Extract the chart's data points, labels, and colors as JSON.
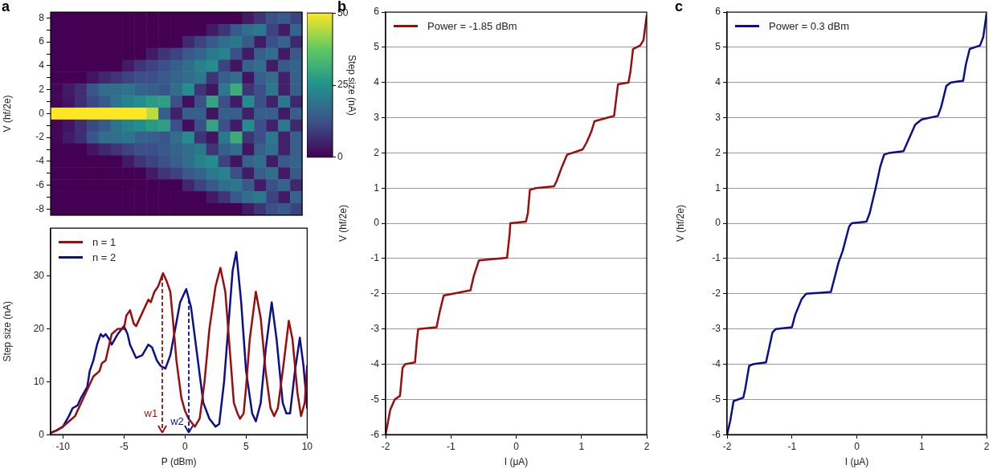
{
  "chart_data": [
    {
      "type": "heatmap",
      "title": "a",
      "ylabel": "V (hf/2e)",
      "categories": [
        null,
        null,
        null,
        null,
        null,
        null,
        null,
        null,
        null,
        null,
        null,
        null,
        null,
        null,
        null,
        null,
        null,
        null,
        null,
        null,
        null
      ],
      "y_categories": [
        "8",
        null,
        "6",
        null,
        "4",
        null,
        "2",
        null,
        "0",
        null,
        "-2",
        null,
        "-4",
        null,
        "-6",
        null,
        "-8"
      ],
      "cells": [
        [
          0,
          0,
          0,
          0,
          0,
          0,
          0,
          0,
          0,
          0,
          0,
          0,
          0,
          0,
          0,
          0,
          4,
          8,
          12,
          14,
          10
        ],
        [
          0,
          0,
          0,
          0,
          0,
          0,
          0,
          0,
          0,
          0,
          0,
          0,
          0,
          4,
          8,
          14,
          18,
          20,
          10,
          4,
          16
        ],
        [
          0,
          0,
          0,
          0,
          0,
          0,
          0,
          0,
          0,
          0,
          0,
          6,
          10,
          14,
          18,
          20,
          14,
          4,
          12,
          16,
          6
        ],
        [
          0,
          0,
          0,
          0,
          0,
          0,
          0,
          0,
          4,
          8,
          10,
          14,
          16,
          20,
          22,
          12,
          4,
          15,
          18,
          4,
          14
        ],
        [
          0,
          0,
          0,
          0,
          0,
          0,
          4,
          8,
          10,
          12,
          15,
          18,
          22,
          24,
          10,
          3,
          16,
          18,
          4,
          14,
          16
        ],
        [
          0,
          0,
          0,
          3,
          6,
          8,
          10,
          12,
          12,
          14,
          16,
          18,
          20,
          8,
          15,
          18,
          3,
          15,
          18,
          5,
          15
        ],
        [
          1,
          4,
          7,
          13,
          18,
          18,
          19,
          16,
          15,
          13,
          18,
          24,
          8,
          3,
          20,
          31,
          8,
          12,
          20,
          5,
          15
        ],
        [
          1,
          3,
          7,
          11,
          14,
          19,
          22,
          24,
          27,
          28,
          12,
          2,
          12,
          29,
          12,
          4,
          24,
          12,
          5,
          20,
          6
        ],
        [
          50,
          50,
          50,
          50,
          50,
          50,
          50,
          50,
          45,
          15,
          5,
          15,
          15,
          3,
          15,
          15,
          5,
          15,
          15,
          4,
          15
        ],
        [
          1,
          3,
          7,
          11,
          14,
          19,
          22,
          24,
          27,
          28,
          12,
          2,
          12,
          29,
          12,
          4,
          24,
          12,
          5,
          20,
          6
        ],
        [
          1,
          4,
          7,
          13,
          18,
          18,
          19,
          16,
          15,
          13,
          18,
          24,
          8,
          3,
          20,
          31,
          8,
          12,
          20,
          5,
          15
        ],
        [
          0,
          0,
          0,
          3,
          6,
          8,
          10,
          12,
          12,
          14,
          16,
          18,
          20,
          8,
          15,
          18,
          3,
          15,
          18,
          5,
          15
        ],
        [
          0,
          0,
          0,
          0,
          0,
          0,
          4,
          8,
          10,
          12,
          15,
          18,
          22,
          24,
          10,
          3,
          16,
          18,
          4,
          14,
          16
        ],
        [
          0,
          0,
          0,
          0,
          0,
          0,
          0,
          0,
          4,
          8,
          10,
          14,
          16,
          20,
          22,
          12,
          4,
          15,
          18,
          4,
          14
        ],
        [
          0,
          0,
          0,
          0,
          0,
          0,
          0,
          0,
          0,
          0,
          0,
          6,
          10,
          14,
          18,
          20,
          14,
          4,
          12,
          16,
          6
        ],
        [
          0,
          0,
          0,
          0,
          0,
          0,
          0,
          0,
          0,
          0,
          0,
          0,
          0,
          4,
          8,
          14,
          18,
          20,
          10,
          4,
          16
        ],
        [
          0,
          0,
          0,
          0,
          0,
          0,
          0,
          0,
          0,
          0,
          0,
          0,
          0,
          0,
          0,
          0,
          4,
          8,
          12,
          14,
          10
        ]
      ],
      "clim": [
        0,
        50
      ],
      "cticks": [
        0,
        25,
        50
      ],
      "clabel": "Step size (nA)",
      "tick_labels": "y"
    },
    {
      "type": "line",
      "xlabel": "P (dBm)",
      "ylabel": "Step size (nA)",
      "xlim": [
        -11,
        10
      ],
      "xticks": [
        -10,
        -5,
        0,
        5,
        10
      ],
      "ylim": [
        0,
        39
      ],
      "yticks": [
        0,
        10,
        20,
        30
      ],
      "legend": "top left",
      "series": [
        {
          "name": "n = 1",
          "color": "#9b0d0d",
          "x": [
            -11,
            -10.5,
            -10,
            -9.5,
            -9,
            -8.5,
            -8,
            -7.5,
            -7,
            -6.8,
            -6.5,
            -6.2,
            -6,
            -5.5,
            -5,
            -4.8,
            -4.5,
            -4.2,
            -4,
            -3.5,
            -3,
            -2.8,
            -2.5,
            -2.2,
            -1.8,
            -1.5,
            -1.2,
            -1,
            -0.7,
            -0.3,
            0,
            0.3,
            0.8,
            1.2,
            1.6,
            2,
            2.5,
            2.9,
            3.3,
            3.7,
            4,
            4.3,
            4.5,
            4.8,
            5,
            5.3,
            5.8,
            6.2,
            6.6,
            7,
            7.3,
            7.6,
            8,
            8.5,
            8.8,
            9.2,
            9.5,
            9.8,
            10
          ],
          "values": [
            0.3,
            0.8,
            1.5,
            2.5,
            3.5,
            6,
            8.5,
            11,
            12,
            13.5,
            14,
            17,
            19,
            20,
            20,
            22.5,
            23.5,
            21,
            20.5,
            23,
            25.5,
            25,
            27,
            28,
            30.5,
            29,
            27,
            22,
            14,
            7,
            4.5,
            3,
            1.5,
            3,
            10,
            20,
            28,
            31.5,
            27,
            15,
            6,
            4,
            3,
            4,
            9,
            18,
            27,
            22,
            12,
            5,
            3.5,
            5,
            12,
            21.5,
            18,
            8,
            3.5,
            6,
            13
          ]
        },
        {
          "name": "n = 2",
          "color": "#0b0f8f",
          "x": [
            -11,
            -10.5,
            -10,
            -9.5,
            -9.2,
            -8.8,
            -8.5,
            -8,
            -7.8,
            -7.5,
            -7.2,
            -6.9,
            -6.7,
            -6.5,
            -6.2,
            -6,
            -5.5,
            -5,
            -4.7,
            -4.5,
            -4,
            -3.5,
            -3,
            -2.7,
            -2.3,
            -2,
            -1.6,
            -1.2,
            -0.8,
            -0.4,
            0.1,
            0.5,
            1,
            1.5,
            2,
            2.5,
            2.8,
            3.2,
            3.6,
            3.9,
            4.2,
            4.6,
            5,
            5.5,
            5.8,
            6.2,
            6.6,
            7.1,
            7.5,
            8,
            8.3,
            8.6,
            9,
            9.4,
            9.7,
            10
          ],
          "values": [
            0.3,
            0.8,
            1.5,
            3.5,
            5,
            5.5,
            7,
            9,
            12,
            14,
            17,
            19,
            18.5,
            19,
            18,
            17,
            19,
            20.5,
            19,
            17,
            14.5,
            15,
            17,
            16.5,
            14,
            13,
            12.5,
            15,
            20,
            25,
            27.5,
            24,
            15,
            6,
            3,
            1.5,
            2,
            10,
            22,
            31,
            34.5,
            25,
            12,
            4,
            2.5,
            6,
            16,
            25,
            18,
            6,
            4,
            4,
            12,
            18.3,
            13,
            5
          ]
        }
      ],
      "annotations": [
        {
          "text": "w1",
          "x": -1.85,
          "y": 30.2
        },
        {
          "text": "w2",
          "x": 0.3,
          "y": 25.8
        }
      ]
    },
    {
      "type": "line",
      "title": "b",
      "xlabel": "I (μA)",
      "ylabel": "V (hf/2e)",
      "xlim": [
        -2,
        2
      ],
      "xticks": [
        -2,
        -1,
        0,
        1,
        2
      ],
      "ylim": [
        -6,
        6
      ],
      "yticks": [
        -6,
        -5,
        -4,
        -3,
        -2,
        -1,
        0,
        1,
        2,
        3,
        4,
        5,
        6
      ],
      "grid": "y",
      "legend": "top left",
      "series": [
        {
          "name": "Power = -1.85 dBm",
          "color": "#9b0d0d",
          "x": [
            -2,
            -1.93,
            -1.86,
            -1.78,
            -1.74,
            -1.7,
            -1.55,
            -1.52,
            -1.5,
            -1.22,
            -1.17,
            -1.11,
            -0.7,
            -0.65,
            -0.57,
            -0.14,
            -0.1,
            -0.09,
            0.15,
            0.18,
            0.21,
            0.3,
            0.58,
            0.62,
            0.7,
            0.78,
            1.02,
            1.08,
            1.15,
            1.2,
            1.4,
            1.5,
            1.53,
            1.56,
            1.72,
            1.75,
            1.79,
            1.9,
            1.95,
            2
          ],
          "values": [
            -6,
            -5.3,
            -5,
            -4.9,
            -4.1,
            -4,
            -3.95,
            -3.3,
            -3,
            -2.95,
            -2.5,
            -2.05,
            -1.9,
            -1.5,
            -1.05,
            -0.98,
            -0.3,
            0,
            0.05,
            0.3,
            0.95,
            1,
            1.05,
            1.2,
            1.6,
            1.95,
            2.1,
            2.3,
            2.6,
            2.9,
            3.0,
            3.05,
            3.5,
            3.95,
            4.0,
            4.3,
            4.95,
            5.05,
            5.2,
            5.9
          ]
        }
      ]
    },
    {
      "type": "line",
      "title": "c",
      "xlabel": "I (μA)",
      "ylabel": "V (hf/2e)",
      "xlim": [
        -2,
        2
      ],
      "xticks": [
        -2,
        -1,
        0,
        1,
        2
      ],
      "ylim": [
        -6,
        6
      ],
      "yticks": [
        -6,
        -5,
        -4,
        -3,
        -2,
        -1,
        0,
        1,
        2,
        3,
        4,
        5,
        6
      ],
      "grid": "y",
      "legend": "top left",
      "series": [
        {
          "name": "Power = 0.3 dBm",
          "color": "#0b0f8f",
          "x": [
            -2,
            -1.95,
            -1.9,
            -1.75,
            -1.72,
            -1.66,
            -1.6,
            -1.4,
            -1.37,
            -1.3,
            -1.25,
            -1.0,
            -0.95,
            -0.85,
            -0.78,
            -0.4,
            -0.35,
            -0.28,
            -0.22,
            -0.12,
            -0.08,
            0.15,
            0.2,
            0.29,
            0.36,
            0.42,
            0.5,
            0.72,
            0.78,
            0.9,
            1.0,
            1.25,
            1.3,
            1.38,
            1.45,
            1.64,
            1.68,
            1.74,
            1.9,
            1.95,
            2
          ],
          "values": [
            -6,
            -5.6,
            -5.05,
            -4.95,
            -4.7,
            -4.05,
            -4,
            -3.95,
            -3.7,
            -3.1,
            -3,
            -2.95,
            -2.6,
            -2.15,
            -2,
            -1.95,
            -1.6,
            -1.1,
            -0.8,
            -0.1,
            0,
            0.05,
            0.3,
            1,
            1.6,
            1.95,
            2,
            2.05,
            2.3,
            2.8,
            2.95,
            3.05,
            3.3,
            3.9,
            4,
            4.05,
            4.5,
            4.95,
            5.05,
            5.3,
            5.95
          ]
        }
      ]
    }
  ]
}
